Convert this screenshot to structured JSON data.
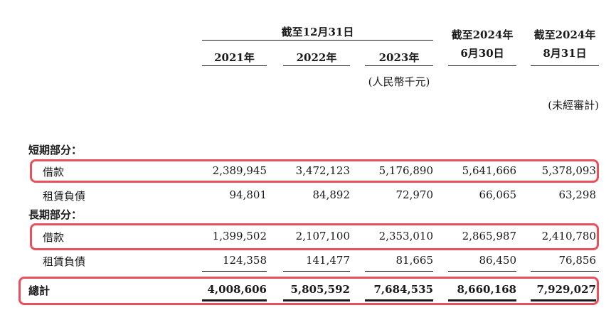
{
  "header": {
    "group_title": "截至12月31日",
    "years": [
      "2021年",
      "2022年",
      "2023年"
    ],
    "col4_line1": "截至2024年",
    "col4_line2": "6月30日",
    "col5_line1": "截至2024年",
    "col5_line2": "8月31日",
    "unit": "(人民幣千元)",
    "unaudited": "(未經審計)"
  },
  "sections": {
    "short_term": "短期部分：",
    "long_term": "長期部分："
  },
  "rows": [
    {
      "label": "借款",
      "values": [
        "2,389,945",
        "3,472,123",
        "5,176,890",
        "5,641,666",
        "5,378,093"
      ]
    },
    {
      "label": "租賃負債",
      "values": [
        "94,801",
        "84,892",
        "72,970",
        "66,065",
        "63,298"
      ]
    },
    {
      "label": "借款",
      "values": [
        "1,399,502",
        "2,107,100",
        "2,353,010",
        "2,865,987",
        "2,410,780"
      ]
    },
    {
      "label": "租賃負債",
      "values": [
        "124,358",
        "141,477",
        "81,665",
        "86,450",
        "76,856"
      ]
    }
  ],
  "total": {
    "label": "總計",
    "values": [
      "4,008,606",
      "5,805,592",
      "7,684,535",
      "8,660,168",
      "7,929,027"
    ]
  },
  "colors": {
    "highlight": "#e8505b"
  }
}
